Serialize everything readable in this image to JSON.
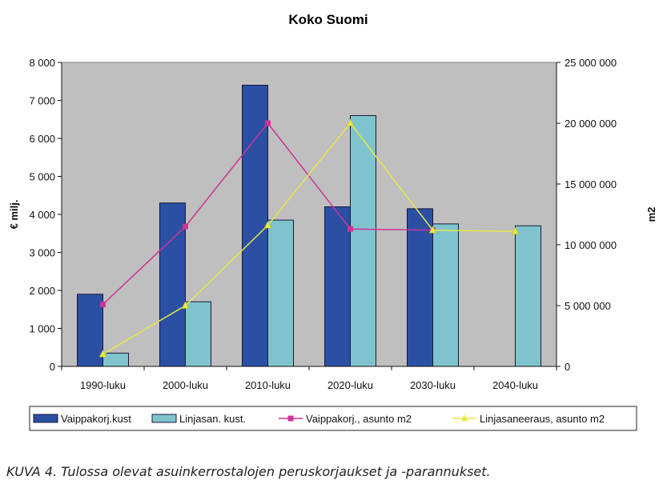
{
  "chart_data": {
    "type": "bar",
    "title": "Koko Suomi",
    "ylabel": "€ milj.",
    "y2label": "m2",
    "categories": [
      "1990-luku",
      "2000-luku",
      "2010-luku",
      "2020-luku",
      "2030-luku",
      "2040-luku"
    ],
    "ylim": [
      0,
      8000
    ],
    "y2lim": [
      0,
      25000000
    ],
    "yticks": [
      "0",
      "1 000",
      "2 000",
      "3 000",
      "4 000",
      "5 000",
      "6 000",
      "7 000",
      "8 000"
    ],
    "y2ticks": [
      "0",
      "5 000 000",
      "10 000 000",
      "15 000 000",
      "20 000 000",
      "25 000 000"
    ],
    "grid": false,
    "legend_position": "bottom",
    "series": [
      {
        "name": "Vaippakorj.kust",
        "type": "bar",
        "axis": "left",
        "color": "#2b4fa3",
        "values": [
          1900,
          4300,
          7400,
          4200,
          4150,
          null
        ]
      },
      {
        "name": "Linjasan. kust.",
        "type": "bar",
        "axis": "left",
        "color": "#7fc4cc",
        "values": [
          350,
          1700,
          3850,
          6600,
          3750,
          3700
        ]
      },
      {
        "name": "Vaippakorj., asunto m2",
        "type": "line",
        "axis": "right",
        "color": "#cc3399",
        "values": [
          5100000,
          11500000,
          20000000,
          11300000,
          11200000,
          null
        ]
      },
      {
        "name": "Linjasaneeraus, asunto m2",
        "type": "line",
        "axis": "right",
        "color": "#e8e84a",
        "values": [
          1000000,
          5000000,
          11600000,
          20000000,
          11200000,
          11100000
        ]
      }
    ]
  },
  "caption": "KUVA 4. Tulossa olevat asuinkerrostalojen peruskorjaukset ja -parannukset."
}
